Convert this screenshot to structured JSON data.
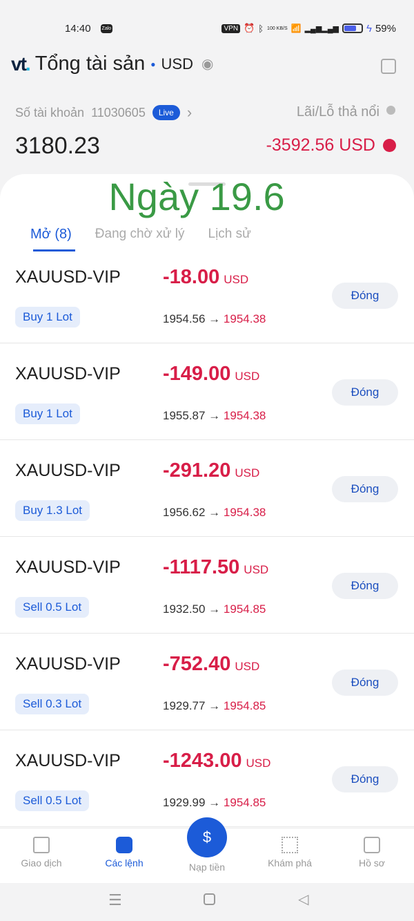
{
  "status": {
    "time": "14:40",
    "app_badge": "Zalo",
    "vpn": "VPN",
    "speed": "100 KB/S",
    "battery": "59%"
  },
  "header": {
    "title": "Tổng tài sản",
    "currency": "USD"
  },
  "account": {
    "label": "Số tài khoản",
    "number": "11030605",
    "live": "Live",
    "pnl_label": "Lãi/Lỗ thả nổi",
    "balance": "3180.23",
    "pnl": "-3592.56 USD"
  },
  "overlay": "Ngày 19.6",
  "tabs": [
    {
      "label": "Mở (8)",
      "active": true
    },
    {
      "label": "Đang chờ xử lý"
    },
    {
      "label": "Lịch sử"
    }
  ],
  "orders": [
    {
      "symbol": "XAUUSD-VIP",
      "pnl": "-18.00",
      "cur": "USD",
      "side": "Buy 1 Lot",
      "open": "1954.56",
      "current": "1954.38",
      "close": "Đóng"
    },
    {
      "symbol": "XAUUSD-VIP",
      "pnl": "-149.00",
      "cur": "USD",
      "side": "Buy 1 Lot",
      "open": "1955.87",
      "current": "1954.38",
      "close": "Đóng"
    },
    {
      "symbol": "XAUUSD-VIP",
      "pnl": "-291.20",
      "cur": "USD",
      "side": "Buy 1.3 Lot",
      "open": "1956.62",
      "current": "1954.38",
      "close": "Đóng"
    },
    {
      "symbol": "XAUUSD-VIP",
      "pnl": "-1117.50",
      "cur": "USD",
      "side": "Sell 0.5 Lot",
      "open": "1932.50",
      "current": "1954.85",
      "close": "Đóng"
    },
    {
      "symbol": "XAUUSD-VIP",
      "pnl": "-752.40",
      "cur": "USD",
      "side": "Sell 0.3 Lot",
      "open": "1929.77",
      "current": "1954.85",
      "close": "Đóng"
    },
    {
      "symbol": "XAUUSD-VIP",
      "pnl": "-1243.00",
      "cur": "USD",
      "side": "Sell 0.5 Lot",
      "open": "1929.99",
      "current": "1954.85",
      "close": "Đóng"
    }
  ],
  "nav": [
    {
      "label": "Giao dịch"
    },
    {
      "label": "Các lệnh",
      "active": true
    },
    {
      "label": "Nạp tiền"
    },
    {
      "label": "Khám phá"
    },
    {
      "label": "Hồ sơ"
    }
  ],
  "colors": {
    "accent": "#1c5bd8",
    "loss": "#d81e48",
    "overlay": "#3a9a45"
  }
}
